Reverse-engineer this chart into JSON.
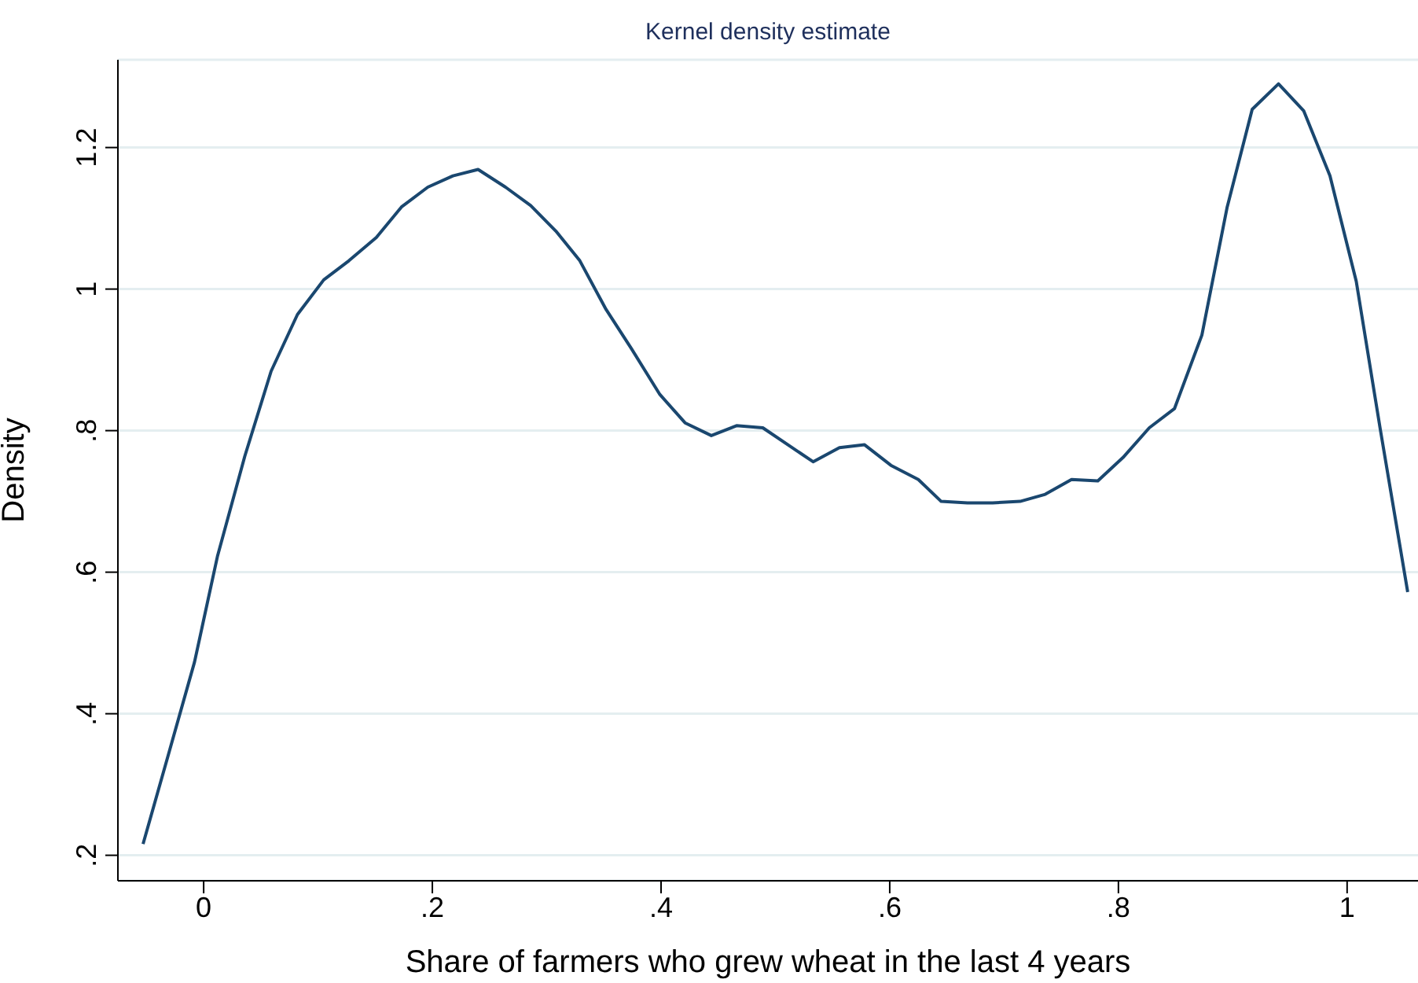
{
  "chart_data": {
    "type": "line",
    "title": "Kernel density estimate",
    "xlabel": "Share of farmers who grew wheat in the last 4 years",
    "ylabel": "Density",
    "x": [
      -0.053,
      -0.03,
      -0.008,
      0.012,
      0.036,
      0.059,
      0.082,
      0.105,
      0.127,
      0.151,
      0.173,
      0.196,
      0.218,
      0.24,
      0.264,
      0.286,
      0.308,
      0.329,
      0.352,
      0.374,
      0.399,
      0.421,
      0.444,
      0.466,
      0.489,
      0.511,
      0.533,
      0.556,
      0.578,
      0.601,
      0.625,
      0.645,
      0.668,
      0.69,
      0.714,
      0.736,
      0.759,
      0.782,
      0.804,
      0.827,
      0.849,
      0.873,
      0.895,
      0.917,
      0.94,
      0.962,
      0.985,
      1.008,
      1.029,
      1.053
    ],
    "series": [
      {
        "color": "#1a476f",
        "values": [
          0.216,
          0.347,
          0.473,
          0.622,
          0.764,
          0.884,
          0.964,
          1.013,
          1.04,
          1.073,
          1.116,
          1.144,
          1.16,
          1.169,
          1.144,
          1.118,
          1.082,
          1.04,
          0.971,
          0.916,
          0.851,
          0.811,
          0.793,
          0.807,
          0.804,
          0.78,
          0.756,
          0.776,
          0.78,
          0.751,
          0.731,
          0.7,
          0.698,
          0.698,
          0.7,
          0.71,
          0.731,
          0.729,
          0.762,
          0.804,
          0.831,
          0.935,
          1.115,
          1.254,
          1.29,
          1.252,
          1.16,
          1.011,
          0.802,
          0.572
        ]
      }
    ],
    "xlim": [
      -0.075,
      1.062
    ],
    "ylim": [
      0.164,
      1.324
    ],
    "xticks": [
      0,
      {
        "value": 0.2,
        "label": ".2"
      },
      {
        "value": 0.4,
        "label": ".4"
      },
      {
        "value": 0.6,
        "label": ".6"
      },
      {
        "value": 0.8,
        "label": ".8"
      },
      1
    ],
    "yticks": [
      {
        "value": 0.2,
        "label": ".2"
      },
      {
        "value": 0.4,
        "label": ".4"
      },
      {
        "value": 0.6,
        "label": ".6"
      },
      {
        "value": 0.8,
        "label": ".8"
      },
      1,
      1.2
    ],
    "grid": "y",
    "legend": false,
    "marker": "none",
    "line_style": "solid"
  }
}
